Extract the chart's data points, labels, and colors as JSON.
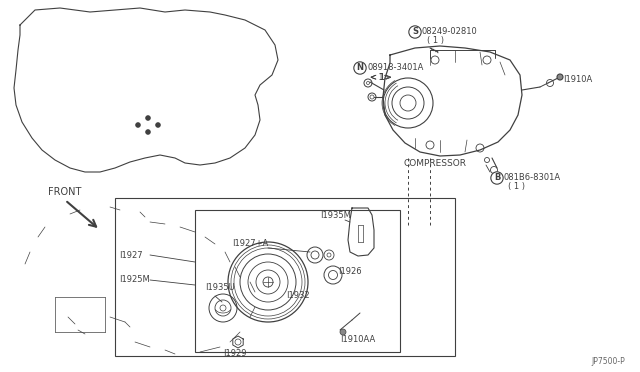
{
  "bg_color": "#ffffff",
  "line_color": "#404040",
  "part_number_bottom_right": "JP7500-P",
  "labels": {
    "compressor": "COMPRESSOR",
    "I1910A": "I1910A",
    "I1910AA": "I1910AA",
    "I1927": "I1927",
    "I1925M": "I1925M",
    "I1935U": "I1935U",
    "I1935M": "I1935M",
    "I1927A": "I1927+A",
    "I1926": "I1926",
    "I1932": "I1932",
    "I1929": "I1929",
    "s_part": "08249-02810",
    "s_qty": "( 1 )",
    "n_part": "08918-3401A",
    "n_qty": "< 1>",
    "b_part": "081B6-8301A",
    "b_qty": "( 1 )"
  },
  "S_label": "S",
  "N_label": "N",
  "B_label": "B"
}
